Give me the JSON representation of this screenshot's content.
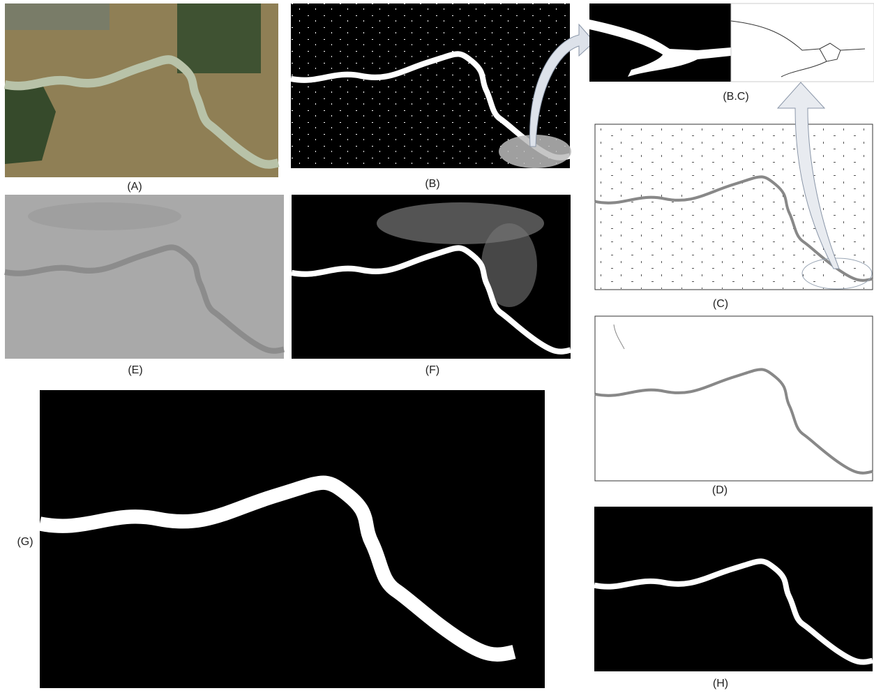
{
  "panels": [
    {
      "label": "(A)"
    },
    {
      "label": "(B)"
    },
    {
      "label": "(B.C)"
    },
    {
      "label": "(C)"
    },
    {
      "label": "(D)"
    },
    {
      "label": "(E)"
    },
    {
      "label": "(F)"
    },
    {
      "label": "(G)"
    },
    {
      "label": "(H)"
    }
  ]
}
